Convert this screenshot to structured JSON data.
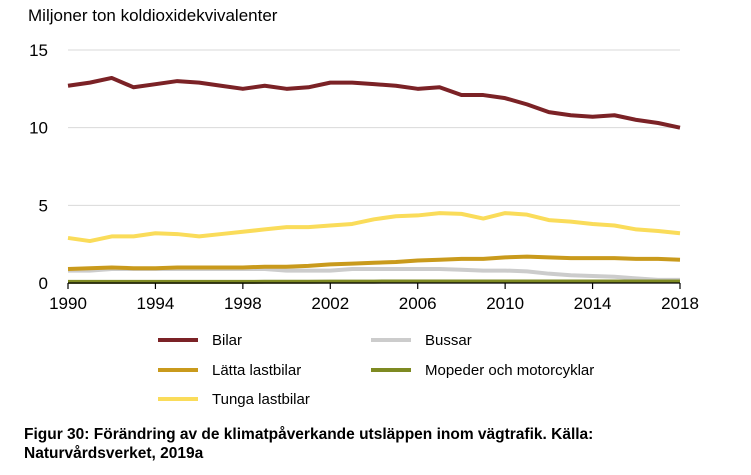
{
  "chart_data": {
    "type": "line",
    "ylabel": "Miljoner ton koldioxidekvivalenter",
    "xlabel": "",
    "xlim": [
      1990,
      2018
    ],
    "ylim": [
      0,
      15
    ],
    "xticks": [
      "1990",
      "1994",
      "1998",
      "2002",
      "2006",
      "2010",
      "2014",
      "2018"
    ],
    "yticks": [
      "0",
      "5",
      "10",
      "15"
    ],
    "grid": "horizontal",
    "legend_position": "bottom",
    "x": [
      1990,
      1991,
      1992,
      1993,
      1994,
      1995,
      1996,
      1997,
      1998,
      1999,
      2000,
      2001,
      2002,
      2003,
      2004,
      2005,
      2006,
      2007,
      2008,
      2009,
      2010,
      2011,
      2012,
      2013,
      2014,
      2015,
      2016,
      2017,
      2018
    ],
    "series": [
      {
        "name": "Bilar",
        "color": "#7b2226",
        "values": [
          12.7,
          12.9,
          13.2,
          12.6,
          12.8,
          13.0,
          12.9,
          12.7,
          12.5,
          12.7,
          12.5,
          12.6,
          12.9,
          12.9,
          12.8,
          12.7,
          12.5,
          12.6,
          12.1,
          12.1,
          11.9,
          11.5,
          11.0,
          10.8,
          10.7,
          10.8,
          10.5,
          10.3,
          10.0
        ]
      },
      {
        "name": "Bussar",
        "color": "#cccccc",
        "values": [
          0.8,
          0.8,
          0.9,
          0.9,
          0.9,
          0.9,
          0.9,
          0.9,
          0.9,
          0.9,
          0.8,
          0.8,
          0.8,
          0.9,
          0.9,
          0.9,
          0.9,
          0.9,
          0.85,
          0.8,
          0.8,
          0.75,
          0.6,
          0.5,
          0.45,
          0.4,
          0.3,
          0.2,
          0.2
        ]
      },
      {
        "name": "Lätta lastbilar",
        "color": "#c99a1c",
        "values": [
          0.9,
          0.95,
          1.0,
          0.95,
          0.95,
          1.0,
          1.0,
          1.0,
          1.0,
          1.05,
          1.05,
          1.1,
          1.2,
          1.25,
          1.3,
          1.35,
          1.45,
          1.5,
          1.55,
          1.55,
          1.65,
          1.7,
          1.65,
          1.6,
          1.6,
          1.6,
          1.55,
          1.55,
          1.5
        ]
      },
      {
        "name": "Mopeder och motorcyklar",
        "color": "#7e8a22",
        "values": [
          0.07,
          0.07,
          0.07,
          0.07,
          0.07,
          0.07,
          0.07,
          0.07,
          0.07,
          0.08,
          0.08,
          0.08,
          0.09,
          0.09,
          0.09,
          0.1,
          0.1,
          0.1,
          0.1,
          0.1,
          0.1,
          0.1,
          0.1,
          0.1,
          0.1,
          0.1,
          0.1,
          0.1,
          0.1
        ]
      },
      {
        "name": "Tunga lastbilar",
        "color": "#fadc5a",
        "values": [
          2.9,
          2.7,
          3.0,
          3.0,
          3.2,
          3.15,
          3.0,
          3.15,
          3.3,
          3.45,
          3.6,
          3.6,
          3.7,
          3.8,
          4.1,
          4.3,
          4.35,
          4.5,
          4.45,
          4.15,
          4.5,
          4.4,
          4.05,
          3.95,
          3.8,
          3.7,
          3.45,
          3.35,
          3.2
        ]
      }
    ]
  },
  "caption": "Figur 30: Förändring av de klimatpåverkande utsläppen inom vägtrafik. Källa: Naturvårdsverket, 2019a"
}
